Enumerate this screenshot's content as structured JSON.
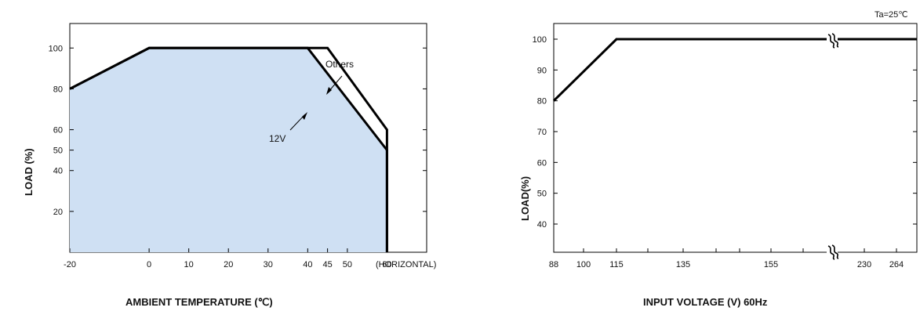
{
  "chart_data": [
    {
      "type": "line",
      "title": "",
      "xlabel": "AMBIENT TEMPERATURE (℃)",
      "ylabel": "LOAD (%)",
      "x_ticks": [
        {
          "value": -20,
          "label": "-20"
        },
        {
          "value": 0,
          "label": "0"
        },
        {
          "value": 10,
          "label": "10"
        },
        {
          "value": 20,
          "label": "20"
        },
        {
          "value": 30,
          "label": "30"
        },
        {
          "value": 40,
          "label": "40"
        },
        {
          "value": 45,
          "label": "45"
        },
        {
          "value": 50,
          "label": "50"
        },
        {
          "value": 60,
          "label": "60"
        }
      ],
      "x_suffix": "(HORIZONTAL)",
      "y_ticks": [
        {
          "value": 20,
          "label": "20"
        },
        {
          "value": 40,
          "label": "40"
        },
        {
          "value": 50,
          "label": "50"
        },
        {
          "value": 60,
          "label": "60"
        },
        {
          "value": 80,
          "label": "80"
        },
        {
          "value": 100,
          "label": "100"
        }
      ],
      "xlim": [
        -20,
        70
      ],
      "ylim": [
        0,
        112
      ],
      "grid": false,
      "fill_color": "#cfe0f3",
      "line_color": "#000000",
      "series": [
        {
          "name": "Others",
          "x": [
            -20,
            0,
            45,
            60,
            60
          ],
          "y": [
            80,
            100,
            100,
            60,
            0
          ]
        },
        {
          "name": "12V",
          "x": [
            -20,
            0,
            40,
            60,
            60
          ],
          "y": [
            80,
            100,
            100,
            50,
            0
          ]
        }
      ],
      "annotations": [
        {
          "text": "Others",
          "series": "Others"
        },
        {
          "text": "12V",
          "series": "12V"
        }
      ]
    },
    {
      "type": "line",
      "title": "",
      "condition": "Ta=25℃",
      "xlabel": "INPUT VOLTAGE (V) 60Hz",
      "ylabel": "LOAD(%)",
      "x_ticks": [
        {
          "value": 88,
          "label": "88"
        },
        {
          "value": 100,
          "label": "100"
        },
        {
          "value": 115,
          "label": "115"
        },
        {
          "value": 135,
          "label": "135"
        },
        {
          "value": 155,
          "label": "155"
        },
        {
          "value": 230,
          "label": "230"
        },
        {
          "value": 264,
          "label": "264"
        }
      ],
      "y_ticks": [
        {
          "value": 40,
          "label": "40"
        },
        {
          "value": 50,
          "label": "50"
        },
        {
          "value": 60,
          "label": "60"
        },
        {
          "value": 70,
          "label": "70"
        },
        {
          "value": 80,
          "label": "80"
        },
        {
          "value": 90,
          "label": "90"
        },
        {
          "value": 100,
          "label": "100"
        }
      ],
      "xlim": [
        88,
        264
      ],
      "ylim": [
        30,
        105
      ],
      "axis_break": "between 155 and 230",
      "grid": false,
      "line_color": "#000000",
      "series": [
        {
          "x": [
            88,
            115,
            155,
            230,
            264
          ],
          "y": [
            80,
            100,
            100,
            100,
            100
          ]
        }
      ]
    }
  ]
}
